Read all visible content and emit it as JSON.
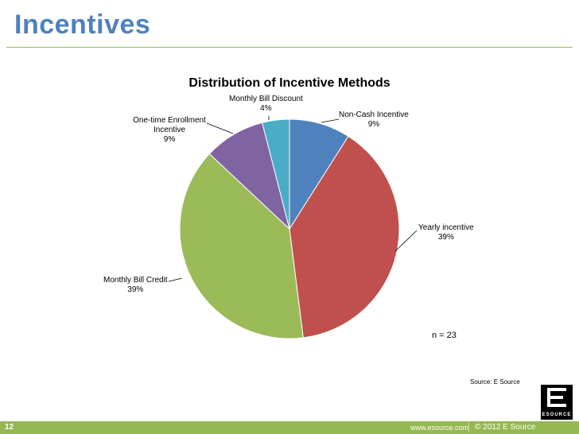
{
  "slide": {
    "title": "Incentives",
    "page_number": "12",
    "footer_url": "www.esource.com",
    "footer_copyright": "© 2012  E Source",
    "logo_text": "ESOURCE"
  },
  "chart_data": {
    "type": "pie",
    "title": "Distribution of Incentive Methods",
    "start_angle_deg": 0,
    "direction": "clockwise",
    "slices": [
      {
        "label": "Non-Cash Incentive",
        "pct_text": "9%",
        "value": 9,
        "color": "#4f81bd"
      },
      {
        "label": "Yearly incentive",
        "pct_text": "39%",
        "value": 39,
        "color": "#c0504d"
      },
      {
        "label": "Monthly Bill Credit",
        "pct_text": "39%",
        "value": 39,
        "color": "#9bbb59"
      },
      {
        "label": "One-time Enrollment Incentive",
        "pct_text": "9%",
        "value": 9,
        "color": "#8064a2"
      },
      {
        "label": "Monthly Bill Discount",
        "pct_text": "4%",
        "value": 4,
        "color": "#4bacc6"
      }
    ],
    "annotation": "n = 23",
    "source": "Source: E Source"
  }
}
